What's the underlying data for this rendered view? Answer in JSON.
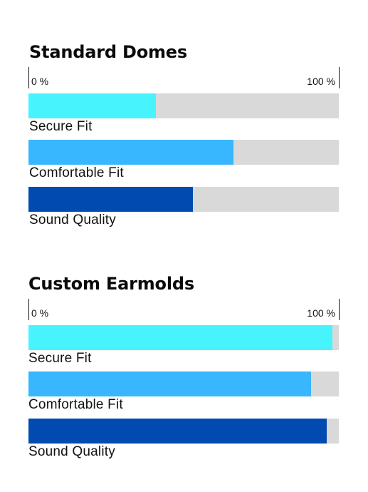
{
  "chart_data": [
    {
      "type": "bar",
      "orientation": "horizontal",
      "title": "Standard Domes",
      "axis": {
        "min_label": "0 %",
        "max_label": "100 %",
        "range": [
          0,
          100
        ]
      },
      "categories": [
        "Secure Fit",
        "Comfortable Fit",
        "Sound Quality"
      ],
      "values": [
        41,
        66,
        53
      ],
      "colors": [
        "#47f4fd",
        "#38b6fe",
        "#004ab0"
      ],
      "track_color": "#d9d9d9"
    },
    {
      "type": "bar",
      "orientation": "horizontal",
      "title": "Custom Earmolds",
      "axis": {
        "min_label": "0 %",
        "max_label": "100 %",
        "range": [
          0,
          100
        ]
      },
      "categories": [
        "Secure Fit",
        "Comfortable Fit",
        "Sound Quality"
      ],
      "values": [
        98,
        91,
        96
      ],
      "colors": [
        "#47f4fd",
        "#38b6fe",
        "#004ab0"
      ],
      "track_color": "#d9d9d9"
    }
  ]
}
